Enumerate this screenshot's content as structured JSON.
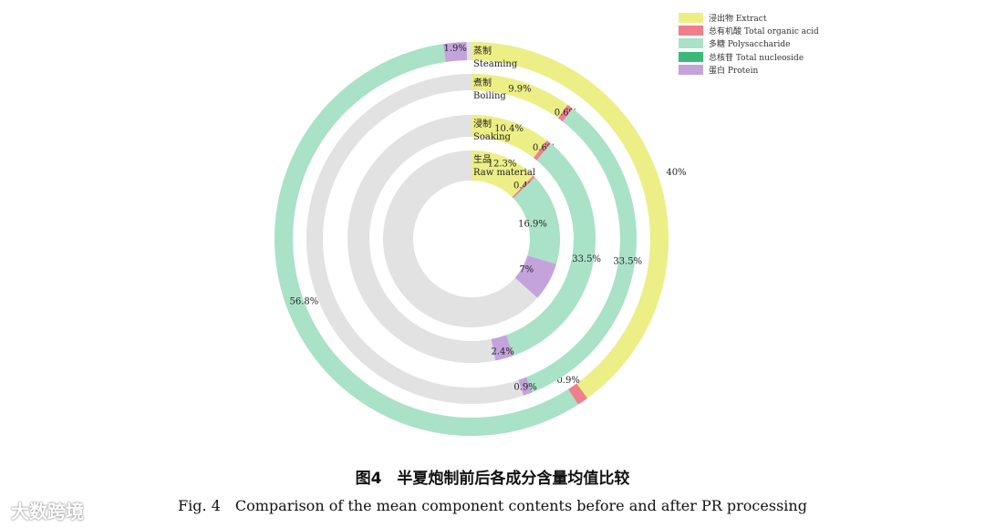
{
  "chart_data": {
    "type": "donut",
    "legend_position": "top-right",
    "colors": {
      "Extract": "#ecef86",
      "Total organic acid": "#ef7f8d",
      "Polysaccharide": "#a9e2c7",
      "Total nucleoside": "#3db87a",
      "Protein": "#c4a3dc",
      "remainder": "#e2e2e2"
    },
    "legend": [
      {
        "key": "Extract",
        "label": "浸出物 Extract"
      },
      {
        "key": "Total organic acid",
        "label": "总有机酸 Total organic acid"
      },
      {
        "key": "Polysaccharide",
        "label": "多糖 Polysaccharide"
      },
      {
        "key": "Total nucleoside",
        "label": "总核苷 Total nucleoside"
      },
      {
        "key": "Protein",
        "label": "蛋白 Protein"
      }
    ],
    "rings": [
      {
        "name_zh": "蒸制",
        "name_en": "Steaming",
        "segments": [
          {
            "key": "Extract",
            "value": 40,
            "label": "40%"
          },
          {
            "key": "Total organic acid",
            "value": 0.9,
            "label": "0.9%"
          },
          {
            "key": "Polysaccharide",
            "value": 56.8,
            "label": "56.8%"
          },
          {
            "key": "Protein",
            "value": 1.9,
            "label": "1.9%"
          }
        ]
      },
      {
        "name_zh": "煮制",
        "name_en": "Boiling",
        "segments": [
          {
            "key": "Extract",
            "value": 9.9,
            "label": "9.9%"
          },
          {
            "key": "Total organic acid",
            "value": 0.6,
            "label": "0.6%"
          },
          {
            "key": "Polysaccharide",
            "value": 33.5,
            "label": "33.5%"
          },
          {
            "key": "Protein",
            "value": 0.9,
            "label": "0.9%"
          }
        ]
      },
      {
        "name_zh": "浸制",
        "name_en": "Soaking",
        "segments": [
          {
            "key": "Extract",
            "value": 10.4,
            "label": "10.4%"
          },
          {
            "key": "Total organic acid",
            "value": 0.6,
            "label": "0.6%"
          },
          {
            "key": "Polysaccharide",
            "value": 33.5,
            "label": "33.5%"
          },
          {
            "key": "Protein",
            "value": 2.4,
            "label": "2.4%"
          }
        ]
      },
      {
        "name_zh": "生品",
        "name_en": "Raw material",
        "segments": [
          {
            "key": "Extract",
            "value": 12.3,
            "label": "12.3%"
          },
          {
            "key": "Total organic acid",
            "value": 0.4,
            "label": "0.4%"
          },
          {
            "key": "Polysaccharide",
            "value": 16.9,
            "label": "16.9%"
          },
          {
            "key": "Protein",
            "value": 7,
            "label": "7%"
          }
        ]
      }
    ]
  },
  "caption": {
    "zh": "图4　半夏炮制前后各成分含量均值比较",
    "en": "Fig. 4　Comparison of the mean component contents before and after PR processing"
  },
  "watermark": "大数跨境"
}
